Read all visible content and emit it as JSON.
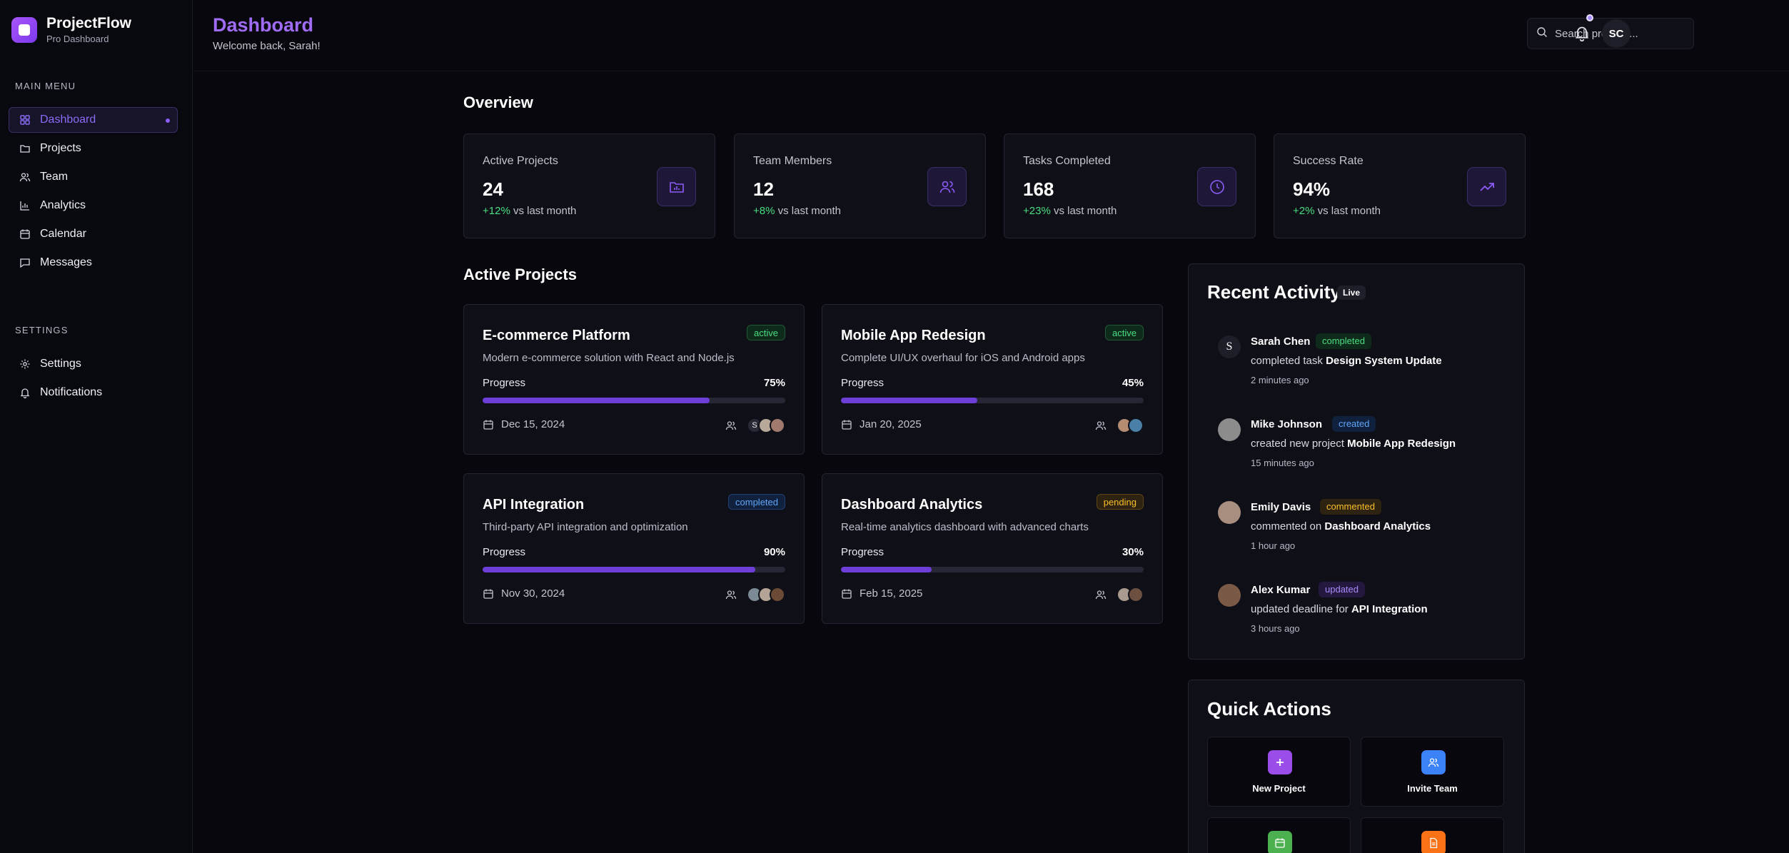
{
  "brand": {
    "name": "ProjectFlow",
    "subtitle": "Pro Dashboard"
  },
  "sidebar": {
    "main_menu_title": "MAIN MENU",
    "main_items": [
      {
        "label": "Dashboard",
        "icon": "grid-icon",
        "active": true
      },
      {
        "label": "Projects",
        "icon": "folder-icon"
      },
      {
        "label": "Team",
        "icon": "users-icon"
      },
      {
        "label": "Analytics",
        "icon": "bar-chart-icon"
      },
      {
        "label": "Calendar",
        "icon": "calendar-icon"
      },
      {
        "label": "Messages",
        "icon": "message-icon"
      }
    ],
    "settings_title": "SETTINGS",
    "settings_items": [
      {
        "label": "Settings",
        "icon": "gear-icon"
      },
      {
        "label": "Notifications",
        "icon": "bell-icon"
      }
    ]
  },
  "header": {
    "title": "Dashboard",
    "subtitle": "Welcome back, Sarah!",
    "search_placeholder": "Search projects...",
    "user_initials": "SC"
  },
  "overview": {
    "title": "Overview",
    "stats": [
      {
        "label": "Active Projects",
        "value": "24",
        "change": "+12%",
        "suffix": " vs last month",
        "icon": "folder-chart-icon"
      },
      {
        "label": "Team Members",
        "value": "12",
        "change": "+8%",
        "suffix": " vs last month",
        "icon": "users-icon"
      },
      {
        "label": "Tasks Completed",
        "value": "168",
        "change": "+23%",
        "suffix": " vs last month",
        "icon": "clock-icon"
      },
      {
        "label": "Success Rate",
        "value": "94%",
        "change": "+2%",
        "suffix": " vs last month",
        "icon": "trending-up-icon"
      }
    ]
  },
  "projects": {
    "title": "Active Projects",
    "progress_label": "Progress",
    "items": [
      {
        "title": "E-commerce Platform",
        "status": "active",
        "description": "Modern e-commerce solution with React and Node.js",
        "progress": "75%",
        "progress_value": 75,
        "date": "Dec 15, 2024"
      },
      {
        "title": "Mobile App Redesign",
        "status": "active",
        "description": "Complete UI/UX overhaul for iOS and Android apps",
        "progress": "45%",
        "progress_value": 45,
        "date": "Jan 20, 2025"
      },
      {
        "title": "API Integration",
        "status": "completed",
        "description": "Third-party API integration and optimization",
        "progress": "90%",
        "progress_value": 90,
        "date": "Nov 30, 2024"
      },
      {
        "title": "Dashboard Analytics",
        "status": "pending",
        "description": "Real-time analytics dashboard with advanced charts",
        "progress": "30%",
        "progress_value": 30,
        "date": "Feb 15, 2025"
      }
    ],
    "team_initial": "S"
  },
  "activity": {
    "title": "Recent Activity",
    "live_label": "Live",
    "items": [
      {
        "name": "Sarah Chen",
        "badge": "completed",
        "text": "completed task ",
        "target": "Design System Update",
        "time": "2 minutes ago",
        "avatar_initial": "S"
      },
      {
        "name": "Mike Johnson",
        "badge": "created",
        "text": "created new project ",
        "target": "Mobile App Redesign",
        "time": "15 minutes ago"
      },
      {
        "name": "Emily Davis",
        "badge": "commented",
        "text": "commented on ",
        "target": "Dashboard Analytics",
        "time": "1 hour ago"
      },
      {
        "name": "Alex Kumar",
        "badge": "updated",
        "text": "updated deadline for ",
        "target": "API Integration",
        "time": "3 hours ago"
      }
    ]
  },
  "quick_actions": {
    "title": "Quick Actions",
    "items": [
      {
        "label": "New Project",
        "icon": "plus-icon",
        "color": "#9b4dea"
      },
      {
        "label": "Invite Team",
        "icon": "users-icon",
        "color": "#3b82f6"
      },
      {
        "label": "",
        "icon": "calendar-icon",
        "color": "#4caf50"
      },
      {
        "label": "",
        "icon": "document-icon",
        "color": "#f97316"
      }
    ]
  },
  "colors": {
    "accent": "#8b5cf6",
    "positive": "#4ade80",
    "background": "#07070d",
    "card": "#0f0f18"
  }
}
